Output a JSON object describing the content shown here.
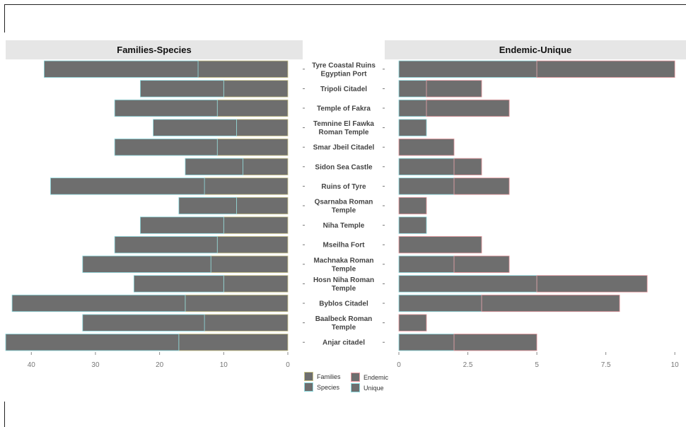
{
  "chart_data": [
    {
      "type": "bar",
      "orientation": "horizontal",
      "direction": "reversed-x",
      "title": "Families-Species",
      "categories": [
        "Tyre Coastal Ruins\nEgyptian Port",
        "Tripoli Citadel",
        "Temple of Fakra",
        "Temnine El Fawka\nRoman Temple",
        "Smar Jbeil Citadel",
        "Sidon Sea Castle",
        "Ruins of Tyre",
        "Qsarnaba Roman\nTemple",
        "Niha Temple",
        "Mseilha Fort",
        "Machnaka Roman\nTemple",
        "Hosn Niha Roman\nTemple",
        "Byblos Citadel",
        "Baalbeck Roman\nTemple",
        "Anjar citadel"
      ],
      "series": [
        {
          "name": "Families",
          "values": [
            14,
            10,
            11,
            8,
            11,
            7,
            13,
            8,
            10,
            11,
            12,
            10,
            16,
            13,
            17
          ]
        },
        {
          "name": "Species",
          "values": [
            24,
            13,
            16,
            13,
            16,
            9,
            24,
            9,
            13,
            16,
            20,
            14,
            27,
            19,
            27
          ]
        }
      ],
      "xlim": [
        0,
        44
      ],
      "xticks": [
        0,
        10,
        20,
        30,
        40
      ],
      "colors": {
        "fill": "#6e6e6e",
        "Families": "#c9c48a",
        "Species": "#8fdbe0"
      }
    },
    {
      "type": "bar",
      "orientation": "horizontal",
      "title": "Endemic-Unique",
      "categories": [
        "Tyre Coastal Ruins\nEgyptian Port",
        "Tripoli Citadel",
        "Temple of Fakra",
        "Temnine El Fawka\nRoman Temple",
        "Smar Jbeil Citadel",
        "Sidon Sea Castle",
        "Ruins of Tyre",
        "Qsarnaba Roman\nTemple",
        "Niha Temple",
        "Mseilha Fort",
        "Machnaka Roman\nTemple",
        "Hosn Niha Roman\nTemple",
        "Byblos Citadel",
        "Baalbeck Roman\nTemple",
        "Anjar citadel"
      ],
      "series": [
        {
          "name": "Endemic",
          "values": [
            5,
            2,
            3,
            0,
            2,
            1,
            2,
            1,
            0,
            3,
            2,
            4,
            5,
            1,
            3
          ]
        },
        {
          "name": "Unique",
          "values": [
            5,
            1,
            1,
            1,
            0,
            2,
            2,
            0,
            1,
            0,
            2,
            5,
            3,
            0,
            2
          ]
        }
      ],
      "xlim": [
        0,
        10.2
      ],
      "xticks": [
        0,
        2.5,
        5,
        7.5,
        10
      ],
      "xticklabels": [
        "0",
        "2.5",
        "5",
        "7.5",
        "10"
      ],
      "colors": {
        "fill": "#6e6e6e",
        "Endemic": "#e89aa0",
        "Unique": "#8fdbe0"
      }
    }
  ],
  "legend": {
    "items": [
      {
        "label": "Families",
        "color": "#c9c48a"
      },
      {
        "label": "Endemic",
        "color": "#e89aa0"
      },
      {
        "label": "Species",
        "color": "#8fdbe0"
      },
      {
        "label": "Unique",
        "color": "#8fdbe0"
      }
    ]
  }
}
